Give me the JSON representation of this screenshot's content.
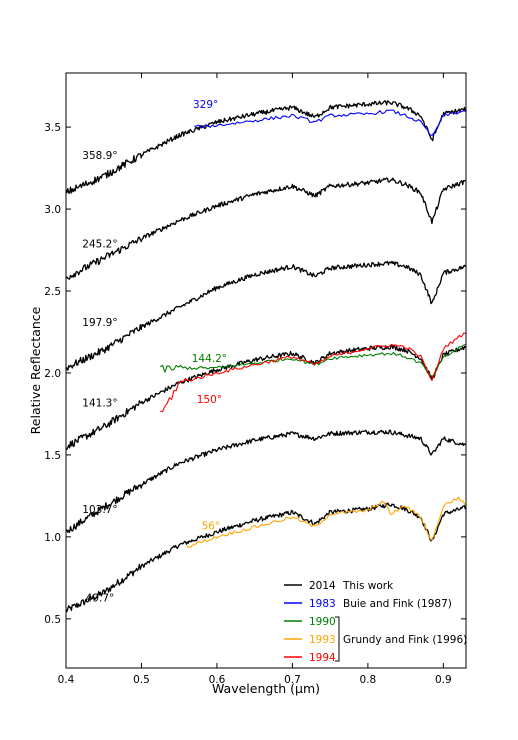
{
  "chart_data": {
    "type": "line",
    "xlabel": "Wavelength (μm)",
    "ylabel": "Relative Reflectance",
    "xlim": [
      0.4,
      0.93
    ],
    "ylim": [
      0.2,
      3.83
    ],
    "x_ticks": [
      "0.4",
      "0.5",
      "0.6",
      "0.7",
      "0.8",
      "0.9"
    ],
    "y_ticks": [
      "0.5",
      "1.0",
      "1.5",
      "2.0",
      "2.5",
      "3.0",
      "3.5"
    ],
    "grid": false,
    "legend_position": "bottom-right",
    "legend": {
      "entries": [
        {
          "year": "2014",
          "label": "This work",
          "color": "#000000"
        },
        {
          "year": "1983",
          "label": "Buie and Fink (1987)",
          "color": "#0000ff"
        },
        {
          "year": "1990",
          "label": "",
          "color": "#008000"
        },
        {
          "year": "1993",
          "label": "",
          "color": "#ffa500"
        },
        {
          "year": "1994",
          "label": "",
          "color": "#ff0000"
        }
      ],
      "group_label": "Grundy and Fink (1996)"
    },
    "series": [
      {
        "year": "2014",
        "color": "#000000",
        "label": "49.7°",
        "label_at": [
          0.445,
          0.63
        ],
        "x": [
          0.4,
          0.45,
          0.5,
          0.55,
          0.6,
          0.65,
          0.7,
          0.73,
          0.75,
          0.8,
          0.83,
          0.85,
          0.87,
          0.885,
          0.9,
          0.93
        ],
        "y": [
          0.55,
          0.66,
          0.82,
          0.95,
          1.03,
          1.1,
          1.15,
          1.08,
          1.15,
          1.17,
          1.2,
          1.17,
          1.12,
          0.97,
          1.14,
          1.18
        ]
      },
      {
        "year": "2014",
        "color": "#000000",
        "label": "103.7°",
        "label_at": [
          0.445,
          1.17
        ],
        "x": [
          0.4,
          0.45,
          0.5,
          0.55,
          0.6,
          0.65,
          0.7,
          0.73,
          0.75,
          0.8,
          0.83,
          0.85,
          0.87,
          0.885,
          0.9,
          0.93
        ],
        "y": [
          1.03,
          1.18,
          1.32,
          1.45,
          1.53,
          1.59,
          1.63,
          1.6,
          1.63,
          1.64,
          1.64,
          1.62,
          1.6,
          1.5,
          1.6,
          1.56
        ]
      },
      {
        "year": "2014",
        "color": "#000000",
        "label": "141.3°",
        "label_at": [
          0.445,
          1.82
        ],
        "x": [
          0.4,
          0.45,
          0.5,
          0.55,
          0.6,
          0.65,
          0.7,
          0.73,
          0.75,
          0.8,
          0.83,
          0.85,
          0.87,
          0.885,
          0.9,
          0.93
        ],
        "y": [
          1.55,
          1.67,
          1.82,
          1.94,
          2.02,
          2.08,
          2.12,
          2.06,
          2.12,
          2.15,
          2.16,
          2.14,
          2.09,
          1.96,
          2.11,
          2.16
        ]
      },
      {
        "year": "2014",
        "color": "#000000",
        "label": "197.9°",
        "label_at": [
          0.445,
          2.31
        ],
        "x": [
          0.4,
          0.45,
          0.5,
          0.55,
          0.6,
          0.65,
          0.7,
          0.73,
          0.75,
          0.8,
          0.83,
          0.85,
          0.87,
          0.885,
          0.9,
          0.93
        ],
        "y": [
          2.03,
          2.14,
          2.28,
          2.4,
          2.52,
          2.6,
          2.65,
          2.59,
          2.64,
          2.66,
          2.67,
          2.65,
          2.6,
          2.42,
          2.61,
          2.65
        ]
      },
      {
        "year": "2014",
        "color": "#000000",
        "label": "245.2°",
        "label_at": [
          0.445,
          2.79
        ],
        "x": [
          0.4,
          0.45,
          0.5,
          0.55,
          0.6,
          0.65,
          0.7,
          0.73,
          0.75,
          0.8,
          0.83,
          0.85,
          0.87,
          0.885,
          0.9,
          0.93
        ],
        "y": [
          2.58,
          2.7,
          2.82,
          2.93,
          3.02,
          3.09,
          3.14,
          3.08,
          3.14,
          3.16,
          3.18,
          3.15,
          3.1,
          2.92,
          3.12,
          3.17
        ]
      },
      {
        "year": "2014",
        "color": "#000000",
        "label": "358.9°",
        "label_at": [
          0.445,
          3.33
        ],
        "x": [
          0.4,
          0.45,
          0.5,
          0.55,
          0.6,
          0.65,
          0.7,
          0.73,
          0.75,
          0.8,
          0.83,
          0.85,
          0.87,
          0.885,
          0.9,
          0.93
        ],
        "y": [
          3.1,
          3.2,
          3.33,
          3.45,
          3.53,
          3.58,
          3.62,
          3.56,
          3.62,
          3.64,
          3.65,
          3.62,
          3.57,
          3.42,
          3.58,
          3.61
        ]
      },
      {
        "year": "1983",
        "color": "#0000ff",
        "label": "329°",
        "label_at": [
          0.585,
          3.64
        ],
        "x": [
          0.57,
          0.6,
          0.65,
          0.7,
          0.73,
          0.75,
          0.8,
          0.83,
          0.85,
          0.87,
          0.885,
          0.9,
          0.93
        ],
        "y": [
          3.5,
          3.51,
          3.54,
          3.57,
          3.53,
          3.57,
          3.58,
          3.6,
          3.57,
          3.53,
          3.44,
          3.57,
          3.6
        ]
      },
      {
        "year": "1990",
        "color": "#008000",
        "label": "144.2°",
        "label_at": [
          0.59,
          2.09
        ],
        "x": [
          0.525,
          0.55,
          0.6,
          0.65,
          0.7,
          0.73,
          0.75,
          0.8,
          0.83,
          0.85,
          0.87,
          0.885,
          0.9,
          0.93
        ],
        "y": [
          2.02,
          2.03,
          2.03,
          2.06,
          2.09,
          2.05,
          2.09,
          2.11,
          2.12,
          2.1,
          2.06,
          1.97,
          2.09,
          2.18
        ]
      },
      {
        "year": "1994",
        "color": "#ff0000",
        "label": "150°",
        "label_at": [
          0.59,
          1.84
        ],
        "x": [
          0.525,
          0.55,
          0.6,
          0.65,
          0.7,
          0.73,
          0.75,
          0.8,
          0.83,
          0.85,
          0.87,
          0.885,
          0.9,
          0.93
        ],
        "y": [
          1.74,
          1.94,
          2.0,
          2.05,
          2.1,
          2.05,
          2.1,
          2.15,
          2.17,
          2.16,
          2.1,
          1.95,
          2.15,
          2.25
        ]
      },
      {
        "year": "1993",
        "color": "#ffa500",
        "label": "56°",
        "label_at": [
          0.592,
          1.07
        ],
        "x": [
          0.56,
          0.6,
          0.65,
          0.7,
          0.73,
          0.75,
          0.8,
          0.82,
          0.83,
          0.85,
          0.87,
          0.885,
          0.9,
          0.92,
          0.93
        ],
        "y": [
          0.94,
          1.0,
          1.06,
          1.12,
          1.06,
          1.14,
          1.16,
          1.22,
          1.14,
          1.19,
          1.12,
          0.97,
          1.19,
          1.24,
          1.19
        ]
      }
    ]
  }
}
